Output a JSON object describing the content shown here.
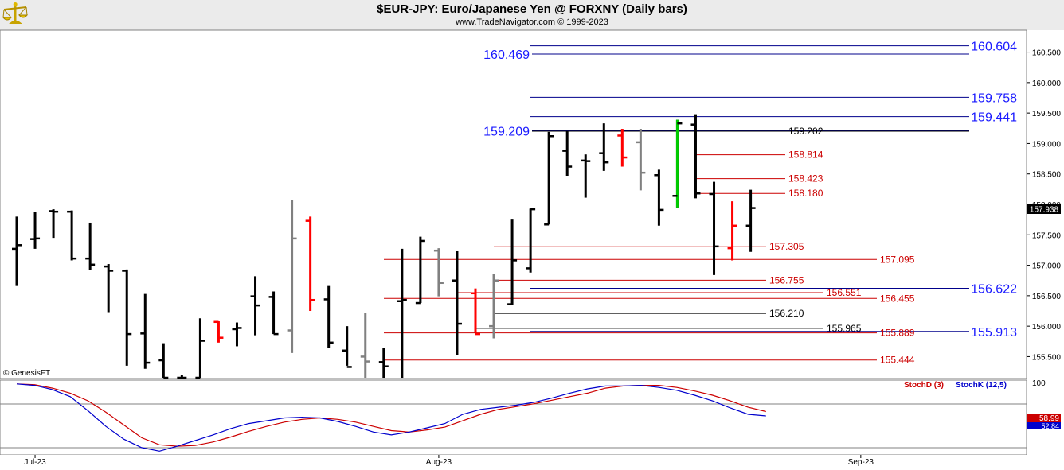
{
  "header": {
    "title": "$EUR-JPY:  Euro/Japanese Yen @ FORXNY  (Daily bars)",
    "subtitle": "www.TradeNavigator.com © 1999-2023",
    "logo_icon": "gold-balance-logo-icon"
  },
  "watermark": "© GenesisFT",
  "colors": {
    "up_bar": "#000000",
    "red_bar": "#ff0000",
    "gray_bar": "#808080",
    "green_bar": "#00cc00",
    "level_blue": "#00008b",
    "level_red": "#cc0000",
    "label_blue": "#1a1aff",
    "stoch_d": "#cc0000",
    "stoch_k": "#0000cc"
  },
  "chart_data": [
    {
      "type": "ohlc",
      "title": "$EUR-JPY:  Euro/Japanese Yen @ FORXNY  (Daily bars)",
      "ylim": [
        155.14,
        160.86
      ],
      "y_ticks": [
        "160.500",
        "160.000",
        "159.500",
        "159.000",
        "158.500",
        "158.000",
        "157.500",
        "157.000",
        "156.500",
        "156.000",
        "155.500"
      ],
      "last_price": "157.938",
      "x_labels": [
        {
          "label": "Jul-23",
          "bar": 1
        },
        {
          "label": "Aug-23",
          "bar": 23
        },
        {
          "label": "Sep-23",
          "bar": 46
        }
      ],
      "bars": [
        {
          "i": 0,
          "o": 157.27,
          "h": 157.8,
          "l": 156.66,
          "c": 157.33,
          "color": "black"
        },
        {
          "i": 1,
          "o": 157.43,
          "h": 157.87,
          "l": 157.27,
          "c": 157.44,
          "color": "black"
        },
        {
          "i": 2,
          "o": 157.89,
          "h": 157.92,
          "l": 157.45,
          "c": 157.88,
          "color": "black"
        },
        {
          "i": 3,
          "o": 157.88,
          "h": 157.9,
          "l": 157.08,
          "c": 157.11,
          "color": "black"
        },
        {
          "i": 4,
          "o": 157.11,
          "h": 157.7,
          "l": 156.92,
          "c": 157.01,
          "color": "black"
        },
        {
          "i": 5,
          "o": 156.98,
          "h": 157.02,
          "l": 156.23,
          "c": 156.91,
          "color": "black"
        },
        {
          "i": 6,
          "o": 156.91,
          "h": 156.93,
          "l": 155.35,
          "c": 155.87,
          "color": "black"
        },
        {
          "i": 7,
          "o": 155.88,
          "h": 156.53,
          "l": 155.3,
          "c": 155.4,
          "color": "black"
        },
        {
          "i": 8,
          "o": 155.44,
          "h": 155.72,
          "l": 155.1,
          "c": 155.12,
          "color": "black"
        },
        {
          "i": 9,
          "o": 155.1,
          "h": 155.2,
          "l": 155.05,
          "c": 155.15,
          "color": "black"
        },
        {
          "i": 10,
          "o": 155.15,
          "h": 156.13,
          "l": 155.1,
          "c": 155.76,
          "color": "black"
        },
        {
          "i": 11,
          "o": 156.07,
          "h": 156.08,
          "l": 155.73,
          "c": 155.81,
          "color": "red"
        },
        {
          "i": 12,
          "o": 155.95,
          "h": 156.06,
          "l": 155.67,
          "c": 155.97,
          "color": "black"
        },
        {
          "i": 13,
          "o": 156.49,
          "h": 156.82,
          "l": 155.85,
          "c": 156.34,
          "color": "black"
        },
        {
          "i": 14,
          "o": 156.48,
          "h": 156.57,
          "l": 155.87,
          "c": 155.87,
          "color": "black"
        },
        {
          "i": 15,
          "o": 155.93,
          "h": 158.07,
          "l": 155.56,
          "c": 157.44,
          "color": "gray"
        },
        {
          "i": 16,
          "o": 157.73,
          "h": 157.8,
          "l": 156.25,
          "c": 156.43,
          "color": "red"
        },
        {
          "i": 17,
          "o": 156.44,
          "h": 156.66,
          "l": 155.64,
          "c": 155.73,
          "color": "black"
        },
        {
          "i": 18,
          "o": 155.6,
          "h": 156.0,
          "l": 155.35,
          "c": 155.33,
          "color": "black"
        },
        {
          "i": 19,
          "o": 155.5,
          "h": 156.22,
          "l": 155.1,
          "c": 155.42,
          "color": "gray"
        },
        {
          "i": 20,
          "o": 155.41,
          "h": 155.64,
          "l": 155.1,
          "c": 155.34,
          "color": "black"
        },
        {
          "i": 21,
          "o": 156.41,
          "h": 157.27,
          "l": 155.1,
          "c": 156.43,
          "color": "black"
        },
        {
          "i": 22,
          "o": 156.38,
          "h": 157.47,
          "l": 156.38,
          "c": 157.4,
          "color": "black"
        },
        {
          "i": 23,
          "o": 157.24,
          "h": 157.28,
          "l": 156.49,
          "c": 156.71,
          "color": "gray"
        },
        {
          "i": 24,
          "o": 156.75,
          "h": 157.24,
          "l": 155.52,
          "c": 156.04,
          "color": "black"
        },
        {
          "i": 25,
          "o": 156.54,
          "h": 156.62,
          "l": 155.89,
          "c": 155.87,
          "color": "red"
        },
        {
          "i": 26,
          "o": 156.0,
          "h": 156.85,
          "l": 155.8,
          "c": 156.75,
          "color": "gray"
        },
        {
          "i": 27,
          "o": 156.36,
          "h": 157.75,
          "l": 156.35,
          "c": 157.08,
          "color": "black"
        },
        {
          "i": 28,
          "o": 156.95,
          "h": 157.93,
          "l": 156.88,
          "c": 157.92,
          "color": "black"
        },
        {
          "i": 29,
          "o": 157.67,
          "h": 159.19,
          "l": 157.67,
          "c": 159.12,
          "color": "black"
        },
        {
          "i": 30,
          "o": 158.88,
          "h": 159.2,
          "l": 158.47,
          "c": 158.62,
          "color": "black"
        },
        {
          "i": 31,
          "o": 158.72,
          "h": 158.82,
          "l": 158.11,
          "c": 158.71,
          "color": "black"
        },
        {
          "i": 32,
          "o": 158.84,
          "h": 159.33,
          "l": 158.55,
          "c": 158.69,
          "color": "black"
        },
        {
          "i": 33,
          "o": 159.13,
          "h": 159.24,
          "l": 158.62,
          "c": 158.77,
          "color": "red"
        },
        {
          "i": 34,
          "o": 159.02,
          "h": 159.24,
          "l": 158.23,
          "c": 158.52,
          "color": "gray"
        },
        {
          "i": 35,
          "o": 158.48,
          "h": 158.57,
          "l": 157.65,
          "c": 157.91,
          "color": "black"
        },
        {
          "i": 36,
          "o": 158.14,
          "h": 159.39,
          "l": 157.95,
          "c": 159.33,
          "color": "green_down"
        },
        {
          "i": 37,
          "o": 159.31,
          "h": 159.48,
          "l": 158.1,
          "c": 158.18,
          "color": "black"
        },
        {
          "i": 38,
          "o": 158.17,
          "h": 158.37,
          "l": 156.84,
          "c": 157.31,
          "color": "black"
        },
        {
          "i": 39,
          "o": 157.28,
          "h": 158.05,
          "l": 157.08,
          "c": 157.65,
          "color": "red"
        },
        {
          "i": 40,
          "o": 157.65,
          "h": 158.24,
          "l": 157.22,
          "c": 157.94,
          "color": "black"
        }
      ],
      "price_levels": [
        {
          "value": "160.604",
          "color": "blue",
          "big": true,
          "side": "right"
        },
        {
          "value": "160.469",
          "color": "blue",
          "big": true,
          "side": "left"
        },
        {
          "value": "159.758",
          "color": "blue",
          "big": true,
          "side": "right"
        },
        {
          "value": "159.441",
          "color": "blue",
          "big": true,
          "side": "right"
        },
        {
          "value": "159.209",
          "color": "blue",
          "big": true,
          "side": "left"
        },
        {
          "value": "159.202",
          "color": "black",
          "big": false,
          "side": "mid"
        },
        {
          "value": "158.814",
          "color": "red",
          "big": false,
          "side": "mid"
        },
        {
          "value": "158.423",
          "color": "red",
          "big": false,
          "side": "mid"
        },
        {
          "value": "158.180",
          "color": "red",
          "big": false,
          "side": "mid"
        },
        {
          "value": "157.305",
          "color": "red",
          "big": false,
          "side": "mid"
        },
        {
          "value": "157.095",
          "color": "red",
          "big": false,
          "side": "mid"
        },
        {
          "value": "156.755",
          "color": "red",
          "big": false,
          "side": "mid"
        },
        {
          "value": "156.622",
          "color": "blue",
          "big": true,
          "side": "right"
        },
        {
          "value": "156.551",
          "color": "red",
          "big": false,
          "side": "mid"
        },
        {
          "value": "156.455",
          "color": "red",
          "big": false,
          "side": "mid"
        },
        {
          "value": "156.210",
          "color": "black",
          "big": false,
          "side": "mid"
        },
        {
          "value": "155.965",
          "color": "black",
          "big": false,
          "side": "mid"
        },
        {
          "value": "155.913",
          "color": "blue",
          "big": true,
          "side": "right"
        },
        {
          "value": "155.889",
          "color": "red",
          "big": false,
          "side": "mid"
        },
        {
          "value": "155.444",
          "color": "red",
          "big": false,
          "side": "mid"
        }
      ]
    },
    {
      "type": "line",
      "ylim": [
        0,
        100
      ],
      "y_ticks": [
        "100"
      ],
      "legend": [
        "StochD (3)",
        "StochK (12,5)"
      ],
      "last_values": {
        "stoch_d": "58.99",
        "stoch_k": "52.84"
      },
      "series": [
        {
          "name": "StochD (3)",
          "values": [
            98,
            97,
            92,
            85,
            74,
            58,
            40,
            22,
            12,
            10,
            11,
            16,
            23,
            31,
            38,
            44,
            48,
            50,
            48,
            44,
            38,
            32,
            30,
            33,
            37,
            46,
            55,
            62,
            66,
            70,
            75,
            80,
            85,
            92,
            95,
            96,
            96,
            93,
            88,
            82,
            74,
            65,
            58.99
          ]
        },
        {
          "name": "StochK (12,5)",
          "values": [
            98,
            96,
            90,
            80,
            60,
            38,
            20,
            8,
            3,
            10,
            18,
            26,
            35,
            42,
            46,
            50,
            51,
            50,
            45,
            38,
            30,
            26,
            30,
            36,
            42,
            55,
            62,
            65,
            68,
            72,
            78,
            85,
            91,
            95,
            95,
            96,
            93,
            89,
            82,
            74,
            64,
            55,
            52.84
          ]
        }
      ]
    }
  ]
}
